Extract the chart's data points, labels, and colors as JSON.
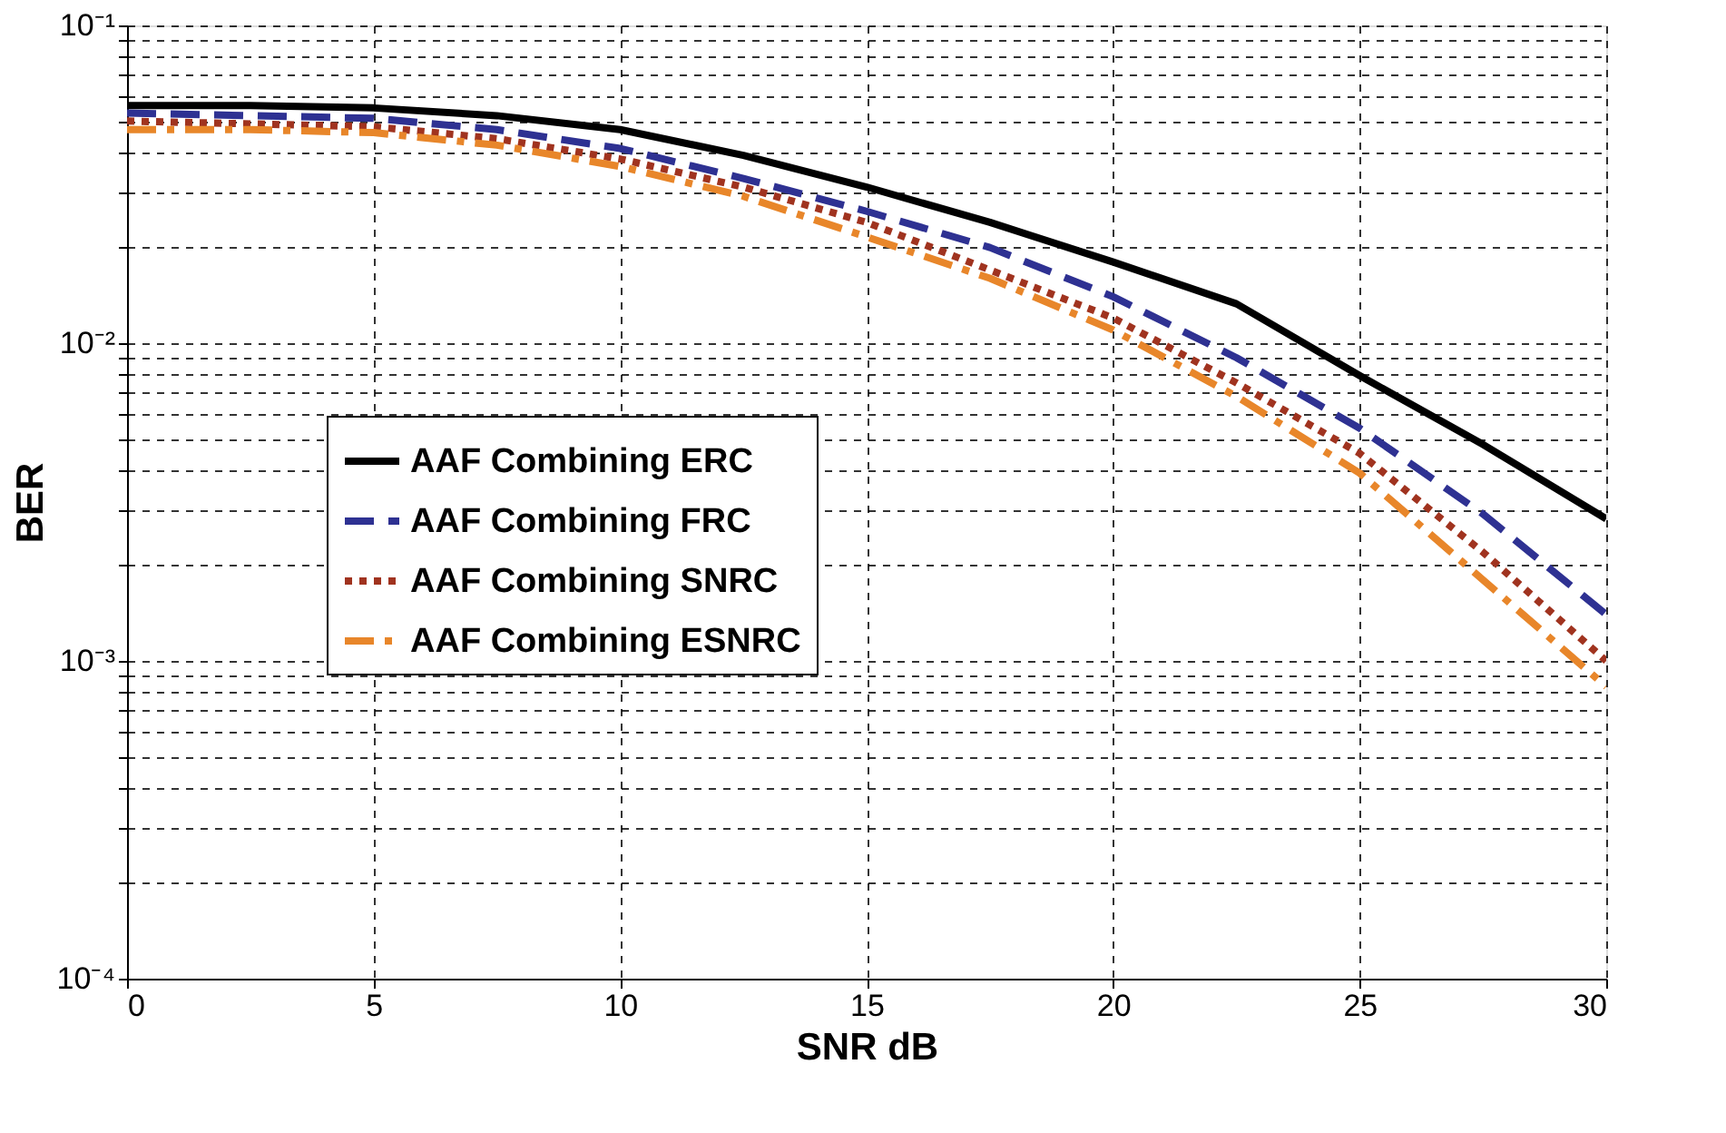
{
  "chart_data": {
    "type": "line",
    "xlabel": "SNR dB",
    "ylabel": "BER",
    "log": "y",
    "xlim": [
      0,
      30
    ],
    "xticks": [
      0,
      5,
      10,
      15,
      20,
      25,
      30
    ],
    "ylim": [
      0.0001,
      0.1
    ],
    "yticks": [
      {
        "value": 0.0001,
        "label": "10⁻⁴"
      },
      {
        "value": 0.0002,
        "label": null
      },
      {
        "value": 0.0003,
        "label": null
      },
      {
        "value": 0.0004,
        "label": null
      },
      {
        "value": 0.0005,
        "label": null
      },
      {
        "value": 0.0006,
        "label": null
      },
      {
        "value": 0.0007,
        "label": null
      },
      {
        "value": 0.0008,
        "label": null
      },
      {
        "value": 0.0009,
        "label": null
      },
      {
        "value": 0.001,
        "label": "10⁻³"
      },
      {
        "value": 0.002,
        "label": null
      },
      {
        "value": 0.003,
        "label": null
      },
      {
        "value": 0.004,
        "label": null
      },
      {
        "value": 0.005,
        "label": null
      },
      {
        "value": 0.006,
        "label": null
      },
      {
        "value": 0.007,
        "label": null
      },
      {
        "value": 0.008,
        "label": null
      },
      {
        "value": 0.009,
        "label": null
      },
      {
        "value": 0.01,
        "label": "10⁻²"
      },
      {
        "value": 0.02,
        "label": null
      },
      {
        "value": 0.03,
        "label": null
      },
      {
        "value": 0.04,
        "label": null
      },
      {
        "value": 0.05,
        "label": null
      },
      {
        "value": 0.06,
        "label": null
      },
      {
        "value": 0.07,
        "label": null
      },
      {
        "value": 0.08,
        "label": null
      },
      {
        "value": 0.09,
        "label": null
      },
      {
        "value": 0.1,
        "label": "10⁻¹"
      }
    ],
    "grid": true,
    "legend": "left",
    "marker": "none",
    "x": [
      0,
      2.5,
      5,
      7.5,
      10,
      12.5,
      15,
      17.5,
      20,
      22.5,
      25,
      27.5,
      30
    ],
    "series": [
      {
        "name": "AAF Combining ERC",
        "color": "#000000",
        "line_style": "solid",
        "values": [
          0.056,
          0.056,
          0.055,
          0.052,
          0.047,
          0.039,
          0.031,
          0.024,
          0.018,
          0.0133,
          0.0079,
          0.0048,
          0.0028
        ]
      },
      {
        "name": "AAF Combining FRC",
        "color": "#2e3192",
        "line_style": "dashed",
        "values": [
          0.053,
          0.052,
          0.051,
          0.047,
          0.041,
          0.033,
          0.026,
          0.02,
          0.014,
          0.009,
          0.0054,
          0.0029,
          0.0014
        ]
      },
      {
        "name": "AAF Combining SNRC",
        "color": "#a0331f",
        "line_style": "dotted",
        "values": [
          0.05,
          0.049,
          0.048,
          0.044,
          0.038,
          0.031,
          0.024,
          0.017,
          0.012,
          0.0075,
          0.0045,
          0.0022,
          0.001
        ]
      },
      {
        "name": "AAF Combining ESNRC",
        "color": "#e8862a",
        "line_style": "dashdot",
        "values": [
          0.047,
          0.047,
          0.046,
          0.042,
          0.036,
          0.029,
          0.0216,
          0.016,
          0.011,
          0.0068,
          0.0039,
          0.0018,
          0.00083
        ]
      }
    ]
  }
}
